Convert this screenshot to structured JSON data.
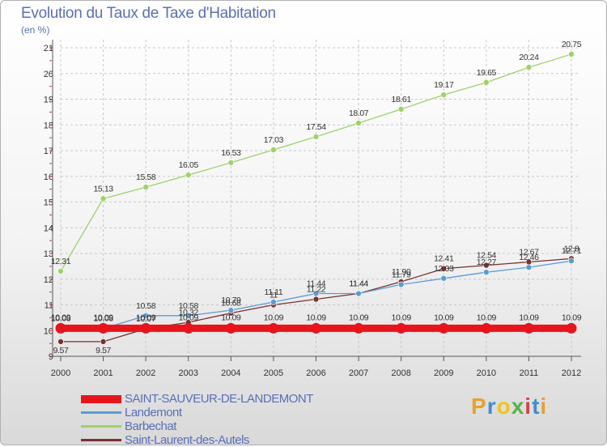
{
  "title": "Evolution du Taux de Taxe d'Habitation",
  "subtitle": "(en %)",
  "logo": {
    "letters": [
      "P",
      "r",
      "o",
      "x",
      "i",
      "t",
      "i"
    ],
    "colors": [
      "#e8a12b",
      "#3b8fd6",
      "#f0c419",
      "#59b24a",
      "#d64444",
      "#3b8fd6",
      "#e8a12b"
    ]
  },
  "colors": {
    "grid": "#c8c8c8",
    "axis": "#555555",
    "tick_marks": "#cc3333",
    "text": "#333333"
  },
  "chart_data": {
    "type": "line",
    "title": "Evolution du Taux de Taxe d'Habitation",
    "subtitle": "(en %)",
    "xlabel": "",
    "ylabel": "",
    "x": [
      "2000",
      "2001",
      "2002",
      "2003",
      "2004",
      "2005",
      "2006",
      "2007",
      "2008",
      "2009",
      "2010",
      "2011",
      "2012"
    ],
    "ylim": [
      9,
      21
    ],
    "yticks": [
      "9",
      "10",
      "11",
      "12",
      "13",
      "14",
      "15",
      "16",
      "17",
      "18",
      "19",
      "20",
      "21"
    ],
    "grid": true,
    "legend": "bottom-left",
    "series": [
      {
        "name": "SAINT-SAUVEUR-DE-LANDEMONT",
        "color": "#e8141b",
        "values": [
          10.09,
          10.09,
          10.09,
          10.09,
          10.09,
          10.09,
          10.09,
          10.09,
          10.09,
          10.09,
          10.09,
          10.09,
          10.09
        ],
        "labels": [
          "10.09",
          "10.09",
          "10.09",
          "10.09",
          "10.09",
          "10.09",
          "10.09",
          "10.09",
          "10.09",
          "10.09",
          "10.09",
          "10.09",
          "10.09"
        ],
        "thick": true
      },
      {
        "name": "Landemont",
        "color": "#5b9bd5",
        "values": [
          10.08,
          10.08,
          10.58,
          10.58,
          10.79,
          11.11,
          11.44,
          11.44,
          11.79,
          12.03,
          12.27,
          12.46,
          12.71
        ],
        "labels": [
          "10.08",
          "10.08",
          "10.58",
          "10.58",
          "10.79",
          "11.11",
          "11.44",
          "11.44",
          "11.79",
          "12.03",
          "12.27",
          "12.46",
          "12.71"
        ]
      },
      {
        "name": "Barbechat",
        "color": "#9cd365",
        "values": [
          12.31,
          15.13,
          15.58,
          16.05,
          16.53,
          17.03,
          17.54,
          18.07,
          18.61,
          19.17,
          19.65,
          20.24,
          20.75
        ],
        "labels": [
          "12.31",
          "15.13",
          "15.58",
          "16.05",
          "16.53",
          "17.03",
          "17.54",
          "18.07",
          "18.61",
          "19.17",
          "19.65",
          "20.24",
          "20.75"
        ]
      },
      {
        "name": "Saint-Laurent-des-Autels",
        "color": "#7b3030",
        "values": [
          9.57,
          9.57,
          10.07,
          10.32,
          10.68,
          11.0,
          11.22,
          11.44,
          11.9,
          12.41,
          12.54,
          12.67,
          12.8
        ],
        "labels": [
          "9.57",
          "9.57",
          "10.07",
          "10.32",
          "10.68",
          "11",
          "11.22",
          "11.44",
          "11.90",
          "12.41",
          "12.54",
          "12.67",
          "12.8"
        ]
      }
    ]
  }
}
